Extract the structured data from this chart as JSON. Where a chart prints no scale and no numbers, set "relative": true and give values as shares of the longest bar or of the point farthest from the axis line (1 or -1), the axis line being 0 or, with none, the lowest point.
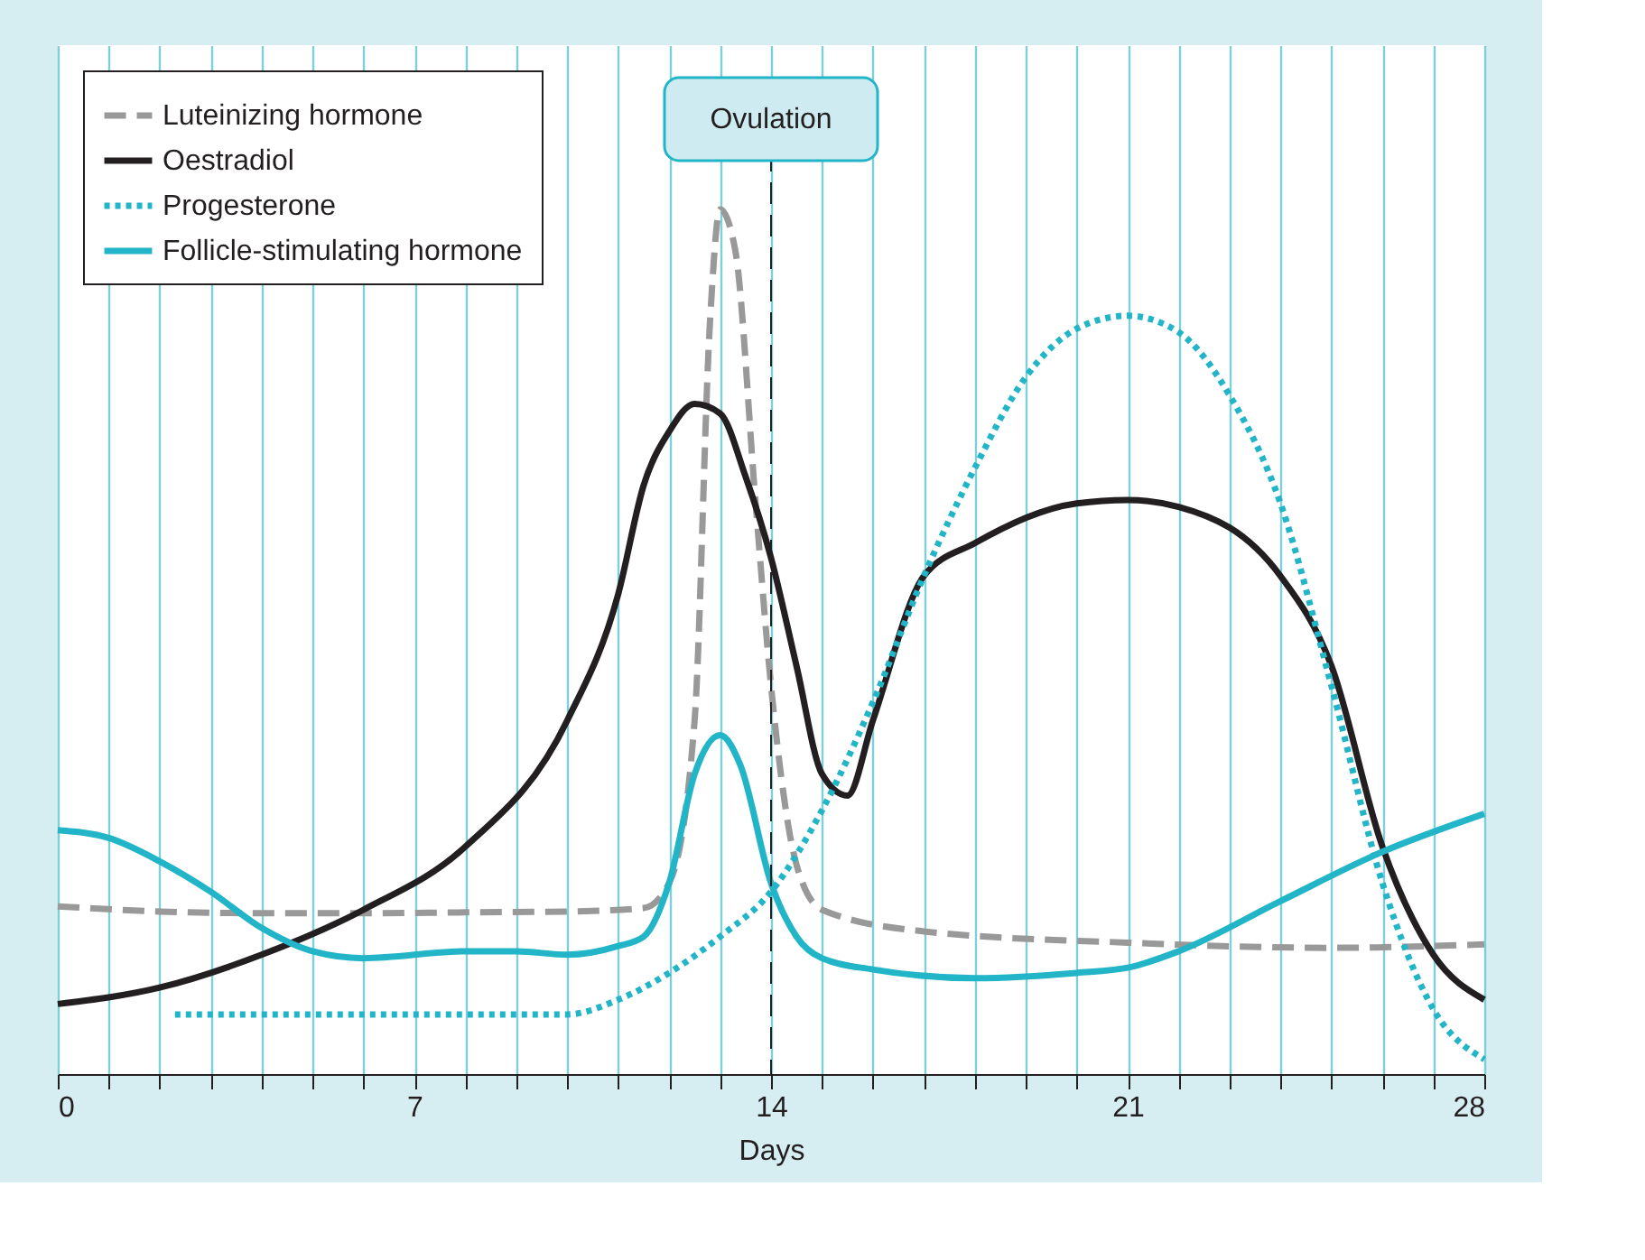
{
  "chart_data": {
    "type": "line",
    "relative": true,
    "xlabel": "Days",
    "xlim": [
      0,
      28
    ],
    "xticks": [
      0,
      {
        "value": 1,
        "label": null
      },
      {
        "value": 2,
        "label": null
      },
      {
        "value": 3,
        "label": null
      },
      {
        "value": 4,
        "label": null
      },
      {
        "value": 5,
        "label": null
      },
      {
        "value": 6,
        "label": null
      },
      7,
      {
        "value": 8,
        "label": null
      },
      {
        "value": 9,
        "label": null
      },
      {
        "value": 10,
        "label": null
      },
      {
        "value": 11,
        "label": null
      },
      {
        "value": 12,
        "label": null
      },
      {
        "value": 13,
        "label": null
      },
      14,
      {
        "value": 15,
        "label": null
      },
      {
        "value": 16,
        "label": null
      },
      {
        "value": 17,
        "label": null
      },
      {
        "value": 18,
        "label": null
      },
      {
        "value": 19,
        "label": null
      },
      {
        "value": 20,
        "label": null
      },
      21,
      {
        "value": 22,
        "label": null
      },
      {
        "value": 23,
        "label": null
      },
      {
        "value": 24,
        "label": null
      },
      {
        "value": 25,
        "label": null
      },
      {
        "value": 26,
        "label": null
      },
      {
        "value": 27,
        "label": null
      },
      28
    ],
    "grid": "x",
    "legend": "top left",
    "marker": "none",
    "ref_lines": [
      {
        "axis": "x",
        "value": 14,
        "label": "Ovulation",
        "color": "#231f20",
        "line_style": "dashed"
      }
    ],
    "series": [
      {
        "name": "Luteinizing hormone",
        "color": "#999999",
        "line_style": "dashed",
        "x": [
          0,
          2,
          4,
          6,
          8,
          10,
          11.5,
          12,
          12.5,
          12.8,
          13,
          13.3,
          13.7,
          14,
          14.5,
          15,
          17,
          21,
          25,
          28
        ],
        "values": [
          0.194,
          0.188,
          0.186,
          0.186,
          0.187,
          0.188,
          0.192,
          0.221,
          0.409,
          0.868,
          1.0,
          0.952,
          0.658,
          0.449,
          0.242,
          0.19,
          0.165,
          0.152,
          0.146,
          0.15
        ]
      },
      {
        "name": "Oestradiol",
        "color": "#231f20",
        "line_style": "solid",
        "x": [
          0,
          2,
          4,
          6,
          8,
          10,
          11,
          11.5,
          12,
          12.5,
          13,
          13.5,
          14,
          14.5,
          15,
          15.5,
          16,
          17,
          18,
          20,
          21,
          22,
          24,
          25,
          26,
          27,
          28
        ],
        "values": [
          0.081,
          0.1,
          0.138,
          0.19,
          0.263,
          0.409,
          0.555,
          0.681,
          0.743,
          0.775,
          0.764,
          0.691,
          0.597,
          0.472,
          0.347,
          0.322,
          0.409,
          0.576,
          0.614,
          0.66,
          0.664,
          0.656,
          0.576,
          0.472,
          0.263,
          0.138,
          0.086
        ]
      },
      {
        "name": "Progesterone",
        "color": "#22b5c8",
        "line_style": "dotted",
        "x": [
          2.3,
          10,
          11,
          12,
          13,
          14,
          15,
          16,
          17,
          18,
          19,
          20,
          21,
          22,
          23,
          24,
          25,
          26,
          27,
          28
        ],
        "values": [
          0.069,
          0.069,
          0.086,
          0.117,
          0.159,
          0.211,
          0.305,
          0.43,
          0.576,
          0.701,
          0.806,
          0.862,
          0.877,
          0.858,
          0.785,
          0.66,
          0.449,
          0.221,
          0.075,
          0.017
        ]
      },
      {
        "name": "Follicle-stimulating hormone",
        "color": "#22b5c8",
        "line_style": "solid",
        "x": [
          0,
          1,
          2,
          3,
          4,
          5,
          6,
          8,
          9,
          10,
          11,
          11.5,
          12,
          12.5,
          13,
          13.4,
          14,
          14.5,
          15,
          16,
          18,
          20,
          21,
          22,
          24,
          26,
          28
        ],
        "values": [
          0.282,
          0.273,
          0.246,
          0.211,
          0.169,
          0.142,
          0.134,
          0.142,
          0.142,
          0.138,
          0.148,
          0.159,
          0.221,
          0.347,
          0.392,
          0.357,
          0.221,
          0.159,
          0.134,
          0.121,
          0.111,
          0.117,
          0.123,
          0.142,
          0.2,
          0.257,
          0.301
        ]
      }
    ]
  }
}
